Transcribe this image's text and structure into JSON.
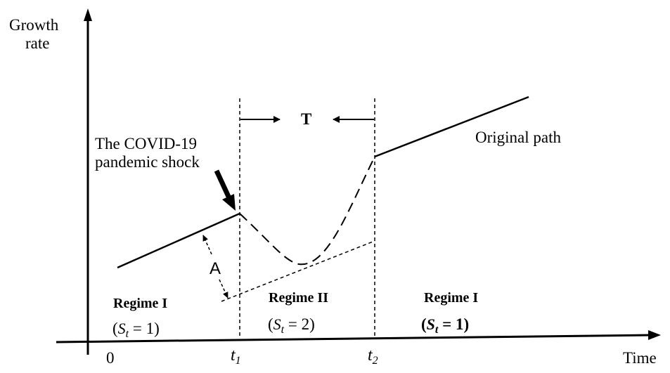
{
  "axes": {
    "y_label_line1": "Growth",
    "y_label_line2": "rate",
    "x_label": "Time",
    "origin": "0",
    "t1": {
      "base": "t",
      "sub": "1"
    },
    "t2": {
      "base": "t",
      "sub": "2"
    }
  },
  "annotations": {
    "interval": "T",
    "shock_line1": "The  COVID-19",
    "shock_line2": "pandemic shock",
    "original_path": "Original path",
    "gap": "A"
  },
  "regimes": [
    {
      "title": "Regime I",
      "state_open": "(",
      "state_var": "S",
      "state_sub": "t",
      "state_rest": " = 1)"
    },
    {
      "title": "Regime II",
      "state_open": "(",
      "state_var": "S",
      "state_sub": "t",
      "state_rest": " = 2)"
    },
    {
      "title": "Regime I",
      "state_open": "(",
      "state_var": "S",
      "state_sub": "t",
      "state_rest": " = 1)"
    }
  ]
}
